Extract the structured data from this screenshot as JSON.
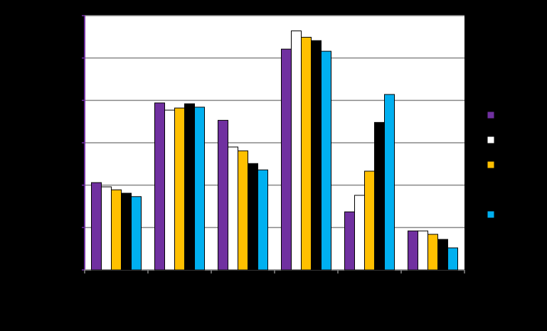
{
  "chart_data": {
    "type": "bar",
    "categories": [
      null,
      null,
      null,
      null,
      null,
      null
    ],
    "series": [
      {
        "color": "#7030a0",
        "values": [
          2.06,
          3.94,
          3.53,
          5.21,
          1.37,
          0.92
        ]
      },
      {
        "color": "#ffffff",
        "values": [
          1.96,
          3.77,
          2.9,
          5.64,
          1.76,
          0.92
        ]
      },
      {
        "color": "#ffc000",
        "values": [
          1.89,
          3.82,
          2.81,
          5.49,
          2.33,
          0.84
        ]
      },
      {
        "color": "#000000",
        "values": [
          1.81,
          3.92,
          2.51,
          5.41,
          3.48,
          0.72
        ]
      },
      {
        "color": "#00b0f0",
        "values": [
          1.73,
          3.84,
          2.36,
          5.16,
          4.14,
          0.52
        ]
      }
    ],
    "ylim": [
      0,
      6
    ],
    "yticks": [
      0,
      1,
      2,
      3,
      4,
      5,
      6
    ],
    "grid": true
  }
}
